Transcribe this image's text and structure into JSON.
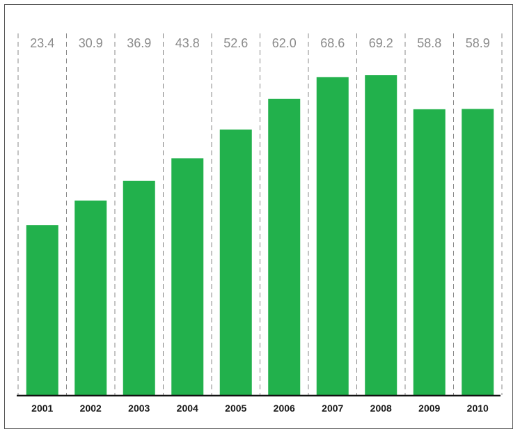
{
  "chart_data": {
    "type": "bar",
    "categories": [
      "2001",
      "2002",
      "2003",
      "2004",
      "2005",
      "2006",
      "2007",
      "2008",
      "2009",
      "2010"
    ],
    "values": [
      23.4,
      30.9,
      36.9,
      43.8,
      52.6,
      62.0,
      68.6,
      69.2,
      58.8,
      58.9
    ],
    "value_labels": [
      "23.4",
      "30.9",
      "36.9",
      "43.8",
      "52.6",
      "62.0",
      "68.6",
      "69.2",
      "58.8",
      "58.9"
    ],
    "title": "",
    "xlabel": "",
    "ylabel": "",
    "ylim": [
      -28.5,
      69.2
    ],
    "grid": "vertical dashed separators",
    "legend": "none",
    "colors": {
      "bar": "#22b14c",
      "separator": "#888888",
      "axis": "#111111",
      "value_text": "#8a8a8a"
    }
  }
}
